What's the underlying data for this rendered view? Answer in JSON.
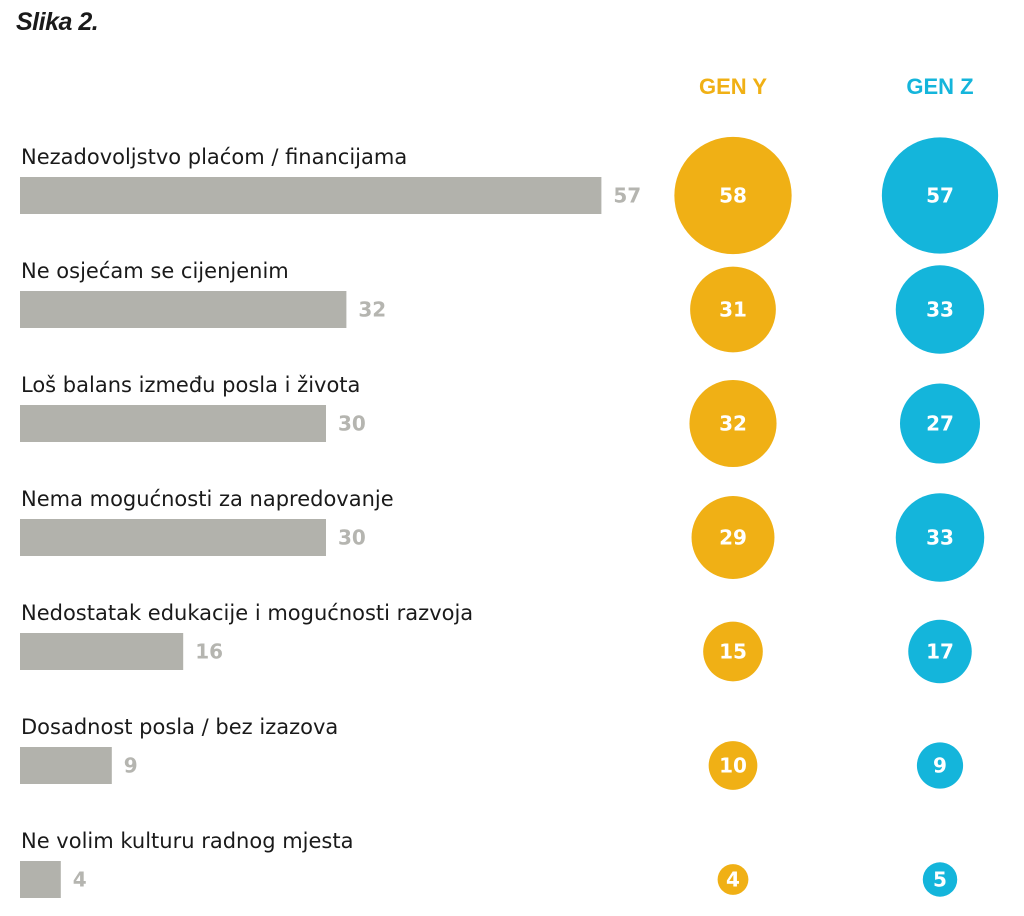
{
  "figure_title": "Slika 2.",
  "colors": {
    "bar": "#b2b2ac",
    "value_text": "#b5b5b0",
    "gen_y": "#f0b015",
    "gen_z": "#14b5db"
  },
  "chart_data": {
    "type": "bar",
    "orientation": "horizontal",
    "categories": [
      "Nezadovoljstvo plaćom / financijama",
      "Ne osjećam se cijenjenim",
      "Loš balans između posla i života",
      "Nema mogućnosti za napredovanje",
      "Nedostatak edukacije i mogućnosti razvoja",
      "Dosadnost posla / bez izazova",
      "Ne volim kulturu radnog mjesta"
    ],
    "values": [
      57,
      32,
      30,
      30,
      16,
      9,
      4
    ],
    "series": [
      {
        "name": "GEN Y",
        "values": [
          58,
          31,
          32,
          29,
          15,
          10,
          4
        ]
      },
      {
        "name": "GEN Z",
        "values": [
          57,
          33,
          27,
          33,
          17,
          9,
          5
        ]
      }
    ],
    "legend": "column-headers",
    "grid": false
  }
}
